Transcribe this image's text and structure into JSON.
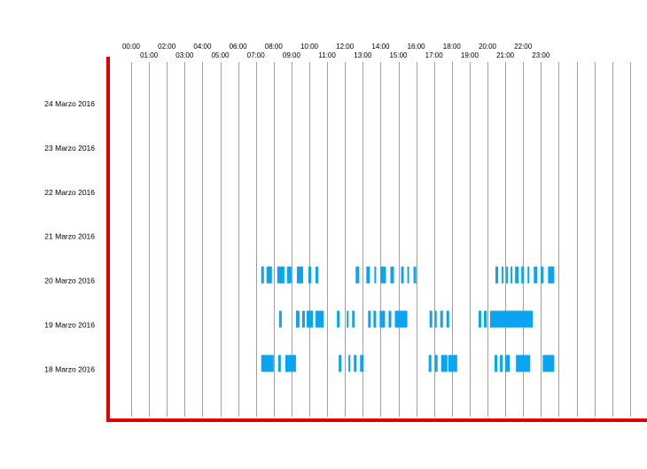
{
  "chart_data": {
    "type": "bar",
    "title": "",
    "xlabel": "",
    "ylabel": "",
    "x_ticks": [
      "00:00",
      "01:00",
      "02:00",
      "03:00",
      "04:00",
      "05:00",
      "06:00",
      "07:00",
      "08:00",
      "09:00",
      "10:00",
      "11:00",
      "12:00",
      "13:00",
      "14:00",
      "15:00",
      "16:00",
      "17:00",
      "18:00",
      "19:00",
      "20:00",
      "21:00",
      "22:00",
      "23:00"
    ],
    "xlim_hours": [
      0,
      28.5
    ],
    "grid": true,
    "colors": {
      "bar": "#0aa4f0",
      "axis": "#e00000",
      "grid": "#888888"
    },
    "categories": [
      "24 Marzo 2016",
      "23 Marzo 2016",
      "22 Marzo 2016",
      "21 Marzo 2016",
      "20 Marzo 2016",
      "19 Marzo 2016",
      "18 Marzo 2016"
    ],
    "series": [
      {
        "day": "24 Marzo 2016",
        "intervals": []
      },
      {
        "day": "23 Marzo 2016",
        "intervals": []
      },
      {
        "day": "22 Marzo 2016",
        "intervals": []
      },
      {
        "day": "21 Marzo 2016",
        "intervals": []
      },
      {
        "day": "20 Marzo 2016",
        "intervals": [
          [
            7.3,
            7.45
          ],
          [
            7.6,
            7.9
          ],
          [
            8.2,
            8.6
          ],
          [
            8.75,
            9.0
          ],
          [
            9.3,
            9.65
          ],
          [
            9.95,
            10.1
          ],
          [
            10.35,
            10.5
          ],
          [
            12.6,
            12.8
          ],
          [
            13.2,
            13.4
          ],
          [
            13.65,
            13.75
          ],
          [
            14.0,
            14.3
          ],
          [
            14.55,
            14.75
          ],
          [
            15.15,
            15.3
          ],
          [
            15.5,
            15.6
          ],
          [
            15.85,
            16.0
          ],
          [
            20.45,
            20.6
          ],
          [
            20.8,
            20.9
          ],
          [
            21.05,
            21.15
          ],
          [
            21.3,
            21.4
          ],
          [
            21.55,
            21.75
          ],
          [
            21.9,
            22.05
          ],
          [
            22.25,
            22.35
          ],
          [
            22.6,
            22.8
          ],
          [
            23.0,
            23.15
          ],
          [
            23.4,
            23.75
          ]
        ]
      },
      {
        "day": "19 Marzo 2016",
        "intervals": [
          [
            8.3,
            8.45
          ],
          [
            9.25,
            9.45
          ],
          [
            9.6,
            9.75
          ],
          [
            9.85,
            10.2
          ],
          [
            10.35,
            10.8
          ],
          [
            11.55,
            11.7
          ],
          [
            12.1,
            12.2
          ],
          [
            12.4,
            12.55
          ],
          [
            13.3,
            13.45
          ],
          [
            13.6,
            13.75
          ],
          [
            13.95,
            14.25
          ],
          [
            14.45,
            14.6
          ],
          [
            14.8,
            15.5
          ],
          [
            16.75,
            16.9
          ],
          [
            17.05,
            17.15
          ],
          [
            17.35,
            17.5
          ],
          [
            17.7,
            17.85
          ],
          [
            19.5,
            19.65
          ],
          [
            19.8,
            19.95
          ],
          [
            20.15,
            22.55
          ]
        ]
      },
      {
        "day": "18 Marzo 2016",
        "intervals": [
          [
            7.3,
            8.0
          ],
          [
            8.25,
            8.4
          ],
          [
            8.65,
            9.25
          ],
          [
            11.65,
            11.8
          ],
          [
            12.2,
            12.3
          ],
          [
            12.5,
            12.65
          ],
          [
            12.85,
            13.05
          ],
          [
            16.7,
            16.85
          ],
          [
            17.05,
            17.2
          ],
          [
            17.4,
            17.75
          ],
          [
            17.8,
            18.3
          ],
          [
            20.4,
            20.55
          ],
          [
            20.7,
            20.85
          ],
          [
            21.0,
            21.25
          ],
          [
            21.6,
            22.4
          ],
          [
            23.1,
            23.75
          ]
        ]
      }
    ]
  }
}
